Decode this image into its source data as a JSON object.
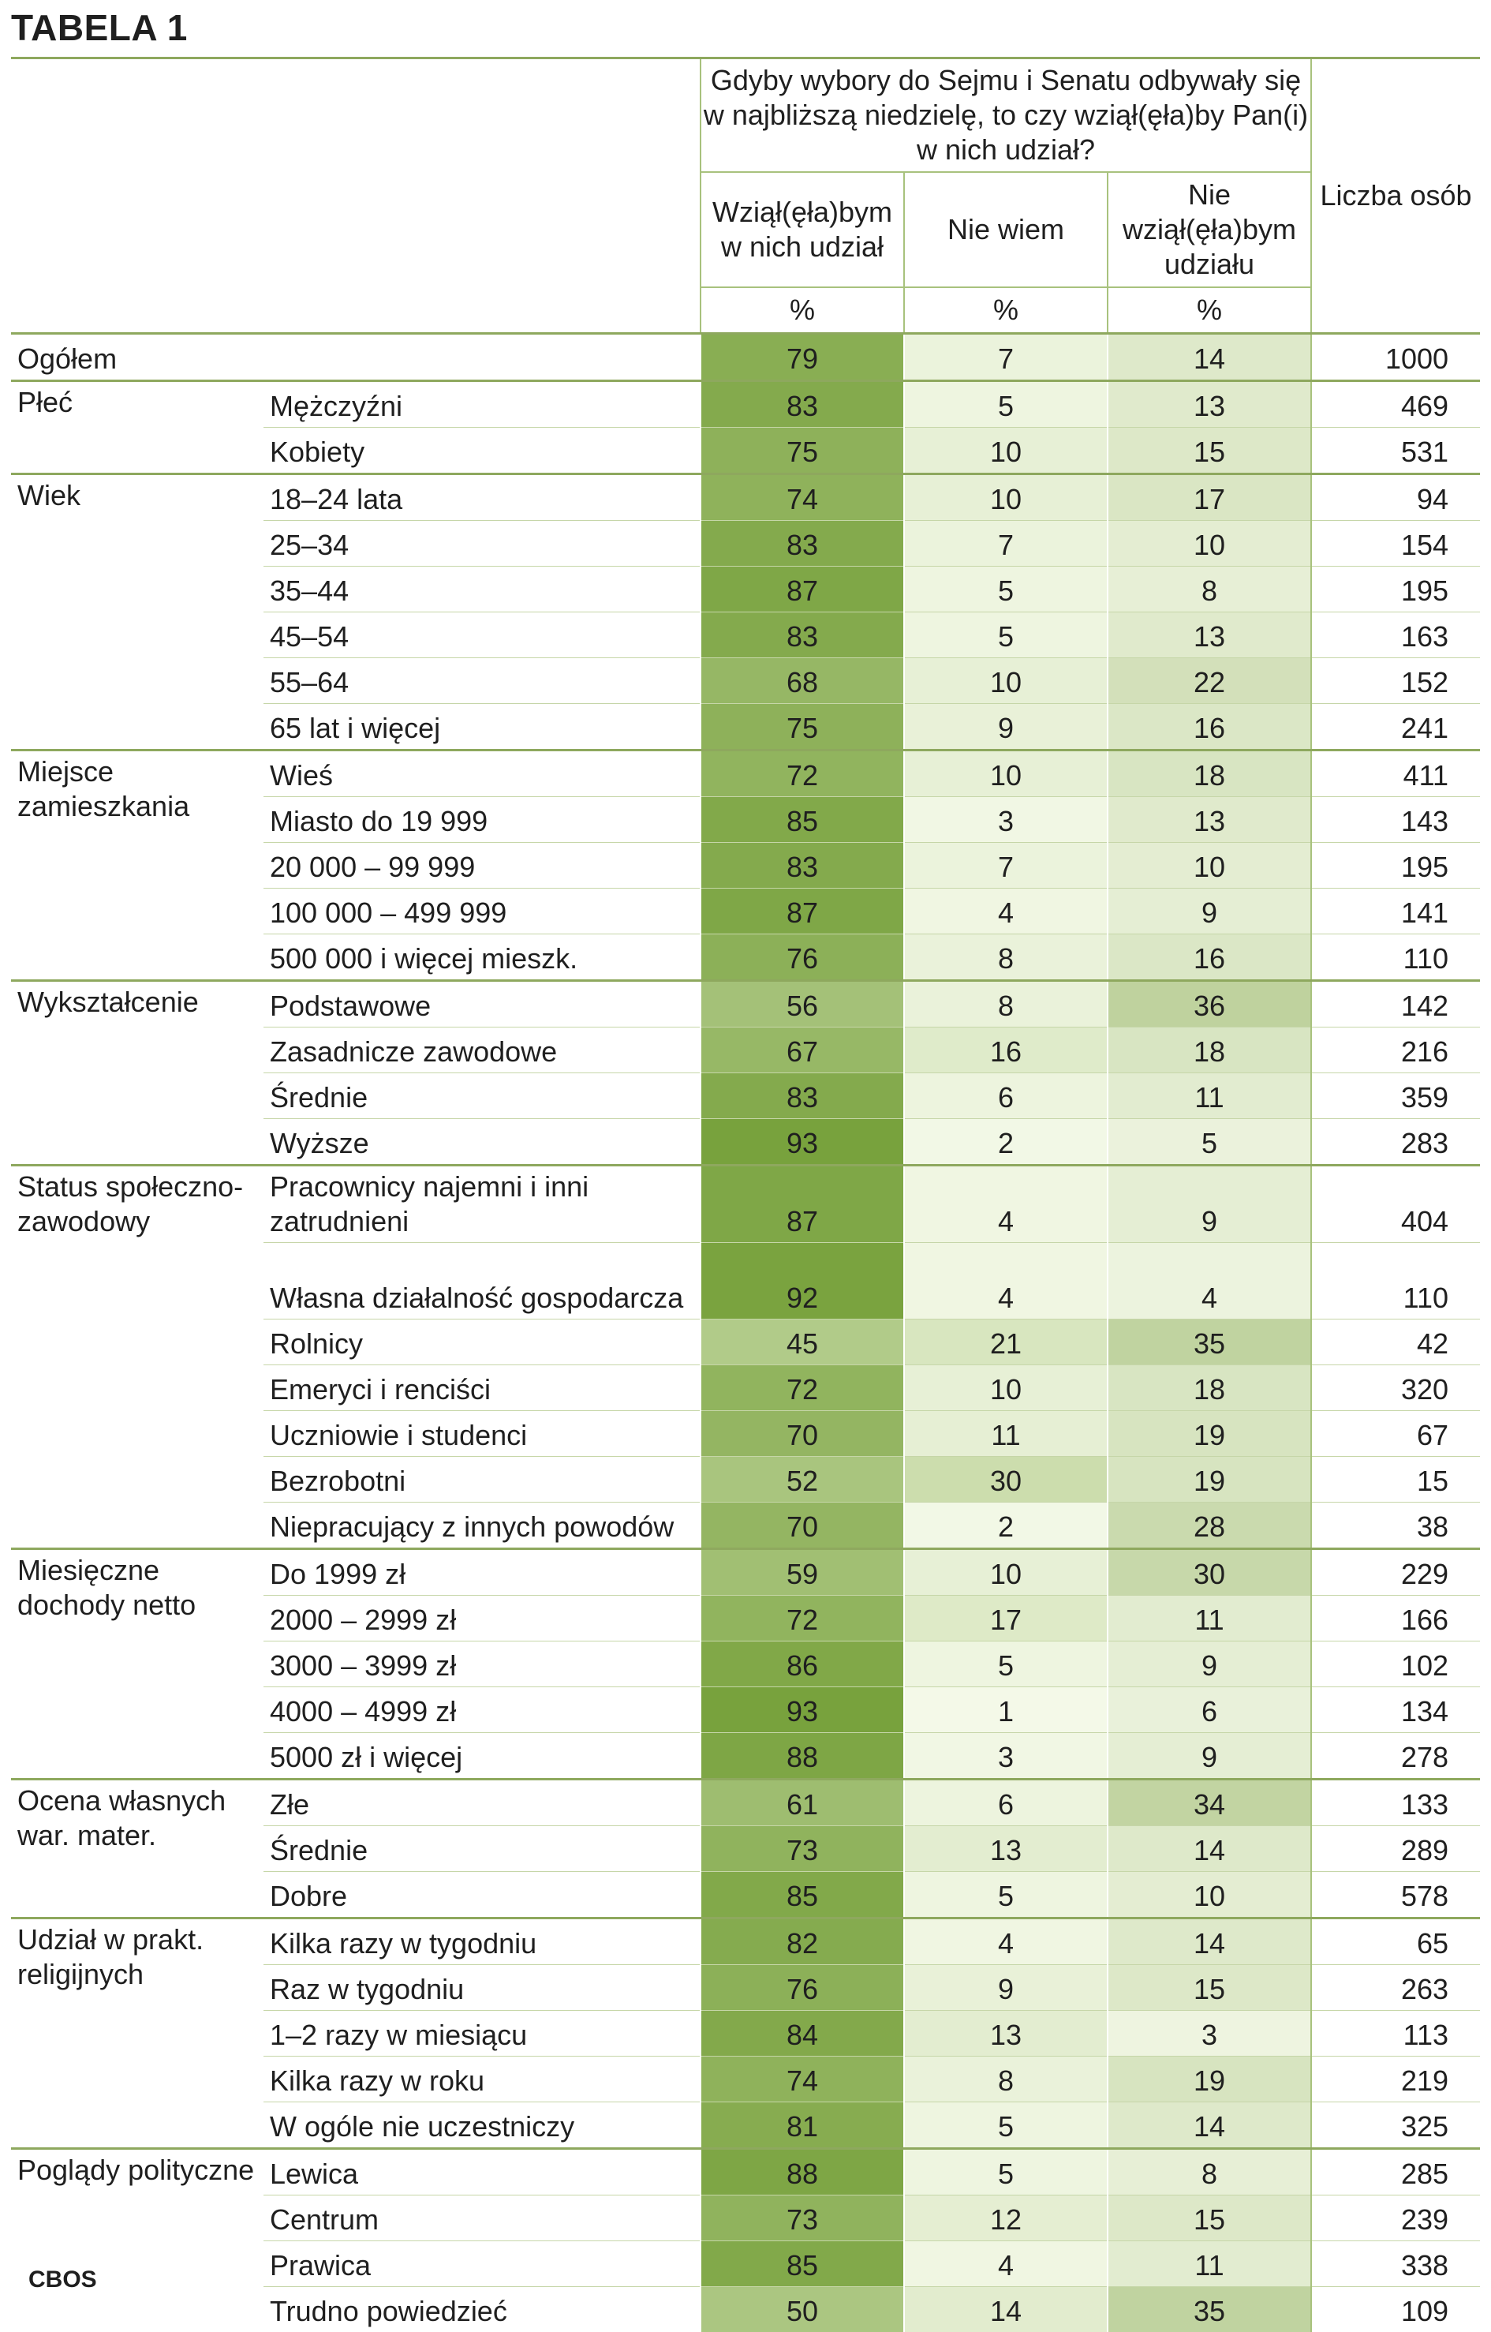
{
  "title": "TABELA 1",
  "footer": "CBOS",
  "header": {
    "question": "Gdyby wybory do Sejmu i Senatu odbywały się w najbliższą niedzielę, to czy wziął(ęła)by Pan(i) w nich udział?",
    "col1": "Wziął(ęła)bym w nich udział",
    "col2": "Nie wiem",
    "col3": "Nie wziął(ęła)bym udziału",
    "count": "Liczba osób",
    "unit": "%"
  },
  "colors": {
    "rule": "#8ea85e",
    "col1_scale": [
      "#b7cf91",
      "#76a03a"
    ],
    "col2_scale": [
      "#f5faea",
      "#c9dba9"
    ],
    "col3_scale": [
      "#f2f7e6",
      "#bcd09a"
    ]
  },
  "total": {
    "label": "Ogółem",
    "values": [
      "79",
      "7",
      "14"
    ],
    "n": "1000"
  },
  "groups": [
    {
      "label": "Płeć",
      "rows": [
        {
          "label": "Mężczyźni",
          "values": [
            "83",
            "5",
            "13"
          ],
          "n": "469"
        },
        {
          "label": "Kobiety",
          "values": [
            "75",
            "10",
            "15"
          ],
          "n": "531"
        }
      ]
    },
    {
      "label": "Wiek",
      "rows": [
        {
          "label": "18–24 lata",
          "values": [
            "74",
            "10",
            "17"
          ],
          "n": "94"
        },
        {
          "label": "25–34",
          "values": [
            "83",
            "7",
            "10"
          ],
          "n": "154"
        },
        {
          "label": "35–44",
          "values": [
            "87",
            "5",
            "8"
          ],
          "n": "195"
        },
        {
          "label": "45–54",
          "values": [
            "83",
            "5",
            "13"
          ],
          "n": "163"
        },
        {
          "label": "55–64",
          "values": [
            "68",
            "10",
            "22"
          ],
          "n": "152"
        },
        {
          "label": "65 lat i więcej",
          "values": [
            "75",
            "9",
            "16"
          ],
          "n": "241"
        }
      ]
    },
    {
      "label": "Miejsce zamieszkania",
      "rows": [
        {
          "label": "Wieś",
          "values": [
            "72",
            "10",
            "18"
          ],
          "n": "411"
        },
        {
          "label": "Miasto do 19 999",
          "values": [
            "85",
            "3",
            "13"
          ],
          "n": "143"
        },
        {
          "label": "20 000 – 99 999",
          "values": [
            "83",
            "7",
            "10"
          ],
          "n": "195"
        },
        {
          "label": "100 000 – 499 999",
          "values": [
            "87",
            "4",
            "9"
          ],
          "n": "141"
        },
        {
          "label": "500 000 i więcej mieszk.",
          "values": [
            "76",
            "8",
            "16"
          ],
          "n": "110"
        }
      ]
    },
    {
      "label": "Wykształcenie",
      "rows": [
        {
          "label": "Podstawowe",
          "values": [
            "56",
            "8",
            "36"
          ],
          "n": "142"
        },
        {
          "label": "Zasadnicze zawodowe",
          "values": [
            "67",
            "16",
            "18"
          ],
          "n": "216"
        },
        {
          "label": "Średnie",
          "values": [
            "83",
            "6",
            "11"
          ],
          "n": "359"
        },
        {
          "label": "Wyższe",
          "values": [
            "93",
            "2",
            "5"
          ],
          "n": "283"
        }
      ]
    },
    {
      "label": "Status społeczno-zawodowy",
      "rows": [
        {
          "label": "Pracownicy najemni i inni zatrudnieni",
          "values": [
            "87",
            "4",
            "9"
          ],
          "n": "404",
          "tall": true
        },
        {
          "label": "Własna działalność gospodarcza",
          "values": [
            "92",
            "4",
            "4"
          ],
          "n": "110",
          "tall": true
        },
        {
          "label": "Rolnicy",
          "values": [
            "45",
            "21",
            "35"
          ],
          "n": "42"
        },
        {
          "label": "Emeryci i renciści",
          "values": [
            "72",
            "10",
            "18"
          ],
          "n": "320"
        },
        {
          "label": "Uczniowie i studenci",
          "values": [
            "70",
            "11",
            "19"
          ],
          "n": "67"
        },
        {
          "label": "Bezrobotni",
          "values": [
            "52",
            "30",
            "19"
          ],
          "n": "15"
        },
        {
          "label": "Niepracujący z innych powodów",
          "values": [
            "70",
            "2",
            "28"
          ],
          "n": "38"
        }
      ]
    },
    {
      "label": "Miesięczne dochody netto",
      "rows": [
        {
          "label": "Do 1999 zł",
          "values": [
            "59",
            "10",
            "30"
          ],
          "n": "229"
        },
        {
          "label": "2000 – 2999 zł",
          "values": [
            "72",
            "17",
            "11"
          ],
          "n": "166"
        },
        {
          "label": "3000 – 3999 zł",
          "values": [
            "86",
            "5",
            "9"
          ],
          "n": "102"
        },
        {
          "label": "4000 – 4999 zł",
          "values": [
            "93",
            "1",
            "6"
          ],
          "n": "134"
        },
        {
          "label": "5000 zł i więcej",
          "values": [
            "88",
            "3",
            "9"
          ],
          "n": "278"
        }
      ]
    },
    {
      "label": "Ocena własnych war. mater.",
      "rows": [
        {
          "label": "Złe",
          "values": [
            "61",
            "6",
            "34"
          ],
          "n": "133"
        },
        {
          "label": "Średnie",
          "values": [
            "73",
            "13",
            "14"
          ],
          "n": "289"
        },
        {
          "label": "Dobre",
          "values": [
            "85",
            "5",
            "10"
          ],
          "n": "578"
        }
      ]
    },
    {
      "label": "Udział w prakt. religijnych",
      "rows": [
        {
          "label": "Kilka razy w tygodniu",
          "values": [
            "82",
            "4",
            "14"
          ],
          "n": "65"
        },
        {
          "label": "Raz w tygodniu",
          "values": [
            "76",
            "9",
            "15"
          ],
          "n": "263"
        },
        {
          "label": "1–2 razy w miesiącu",
          "values": [
            "84",
            "13",
            "3"
          ],
          "n": "113"
        },
        {
          "label": "Kilka razy w roku",
          "values": [
            "74",
            "8",
            "19"
          ],
          "n": "219"
        },
        {
          "label": "W ogóle nie uczestniczy",
          "values": [
            "81",
            "5",
            "14"
          ],
          "n": "325"
        }
      ]
    },
    {
      "label": "Poglądy polityczne",
      "rows": [
        {
          "label": "Lewica",
          "values": [
            "88",
            "5",
            "8"
          ],
          "n": "285"
        },
        {
          "label": "Centrum",
          "values": [
            "73",
            "12",
            "15"
          ],
          "n": "239"
        },
        {
          "label": "Prawica",
          "values": [
            "85",
            "4",
            "11"
          ],
          "n": "338"
        },
        {
          "label": "Trudno powiedzieć",
          "values": [
            "50",
            "14",
            "35"
          ],
          "n": "109"
        }
      ]
    }
  ]
}
